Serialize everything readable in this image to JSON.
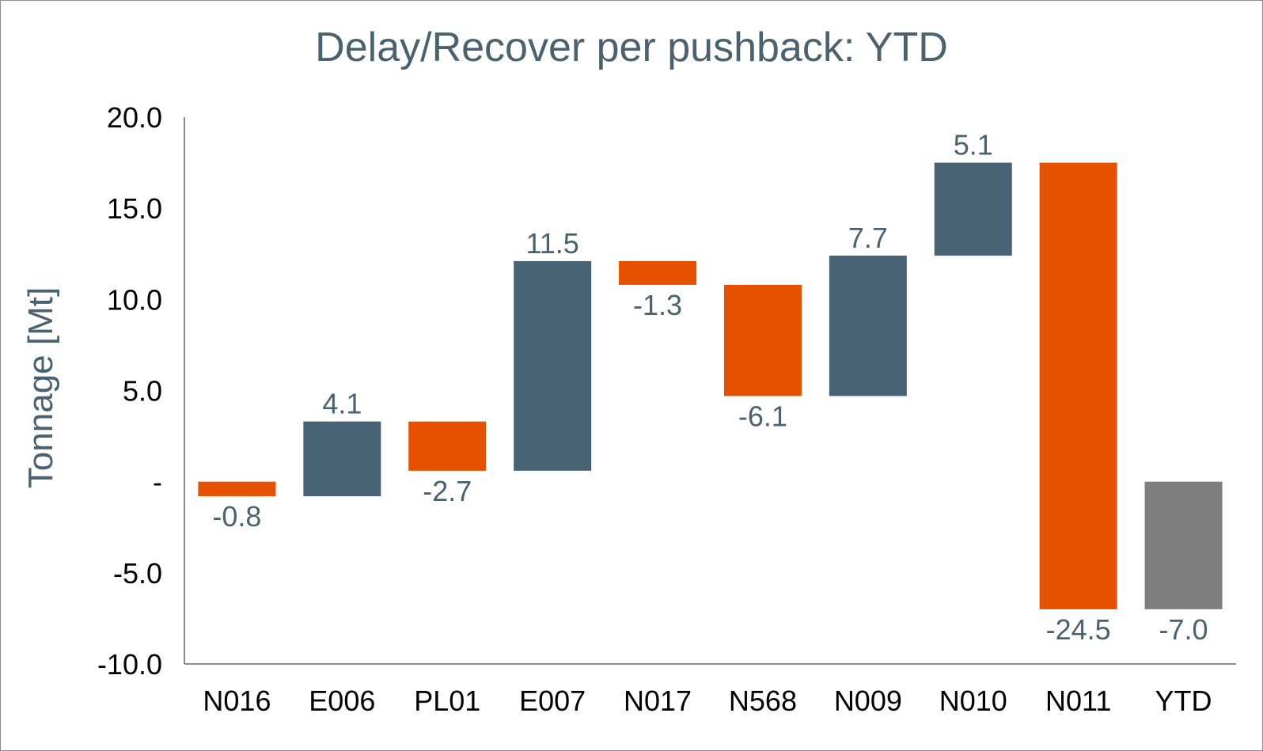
{
  "chart_data": {
    "type": "bar",
    "subtype": "waterfall",
    "title": "Delay/Recover per pushback: YTD",
    "ylabel": "Tonnage [Mt]",
    "xlabel": "",
    "ylim": [
      -10,
      20
    ],
    "yticks": [
      20,
      15,
      10,
      5,
      0,
      -5,
      -10
    ],
    "ytick_labels": [
      "20.0",
      "15.0",
      "10.0",
      "5.0",
      "-",
      "-5.0",
      "-10.0"
    ],
    "grid": false,
    "categories": [
      "N016",
      "E006",
      "PL01",
      "E007",
      "N017",
      "N568",
      "N009",
      "N010",
      "N011",
      "YTD"
    ],
    "values": [
      -0.8,
      4.1,
      -2.7,
      11.5,
      -1.3,
      -6.1,
      7.7,
      5.1,
      -24.5,
      -7.0
    ],
    "value_labels": [
      "-0.8",
      "4.1",
      "-2.7",
      "11.5",
      "-1.3",
      "-6.1",
      "7.7",
      "5.1",
      "-24.5",
      "-7.0"
    ],
    "total_index": 9,
    "colors": {
      "increase": "#486375",
      "decrease": "#e65100",
      "total": "#7f7f7f"
    }
  }
}
